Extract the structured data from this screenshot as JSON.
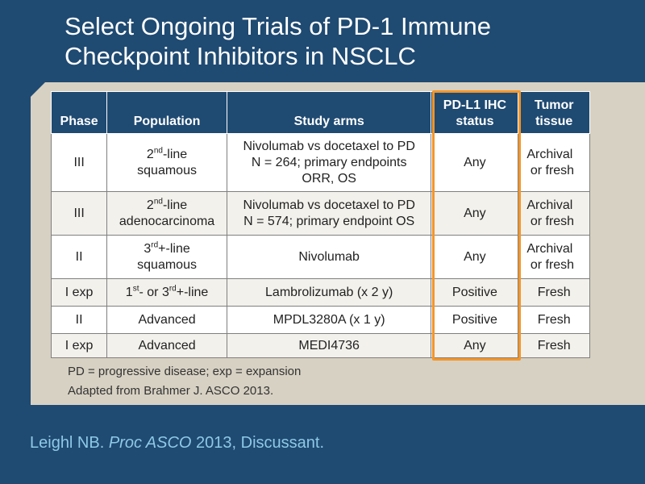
{
  "title": {
    "line1": "Select Ongoing Trials of PD-1 Immune",
    "line2": "Checkpoint Inhibitors in NSCLC"
  },
  "table": {
    "headers": {
      "phase": "Phase",
      "population": "Population",
      "study_arms": "Study arms",
      "pdl1_line1": "PD-L1 IHC",
      "pdl1_line2": "status",
      "tissue_line1": "Tumor",
      "tissue_line2": "tissue"
    },
    "rows": [
      {
        "phase": "III",
        "pop_ord": "2",
        "pop_sup": "nd",
        "pop_rest": "-line",
        "pop_line2": "squamous",
        "arms_line1": "Nivolumab vs docetaxel to PD",
        "arms_line2": "N = 264; primary endpoints",
        "arms_line3": "ORR, OS",
        "pdl1": "Any",
        "tissue_line1": "Archival",
        "tissue_line2": "or fresh"
      },
      {
        "phase": "III",
        "pop_ord": "2",
        "pop_sup": "nd",
        "pop_rest": "-line",
        "pop_line2": "adenocarcinoma",
        "arms_line1": "Nivolumab vs docetaxel to PD",
        "arms_line2": "N = 574; primary endpoint OS",
        "pdl1": "Any",
        "tissue_line1": "Archival",
        "tissue_line2": "or fresh"
      },
      {
        "phase": "II",
        "pop_ord": "3",
        "pop_sup": "rd",
        "pop_rest": "+-line",
        "pop_line2": "squamous",
        "arms_line1": "Nivolumab",
        "pdl1": "Any",
        "tissue_line1": "Archival",
        "tissue_line2": "or fresh"
      },
      {
        "phase": "I exp",
        "pop_a": "1",
        "pop_a_sup": "st",
        "pop_mid": "- or ",
        "pop_b": "3",
        "pop_b_sup": "rd",
        "pop_end": "+-line",
        "arms_line1": "Lambrolizumab (x 2 y)",
        "pdl1": "Positive",
        "tissue": "Fresh"
      },
      {
        "phase": "II",
        "population": "Advanced",
        "arms_line1": "MPDL3280A (x 1 y)",
        "pdl1": "Positive",
        "tissue": "Fresh"
      },
      {
        "phase": "I exp",
        "population": "Advanced",
        "arms_line1": "MEDI4736",
        "pdl1": "Any",
        "tissue": "Fresh"
      }
    ]
  },
  "footnotes": {
    "line1": "PD = progressive disease; exp = expansion",
    "line2": "Adapted from Brahmer J. ASCO 2013."
  },
  "citation": {
    "author": "Leighl NB. ",
    "journal": "Proc ASCO",
    "rest": " 2013, Discussant."
  },
  "colors": {
    "background": "#1f4a72",
    "panel": "#d7d1c3",
    "highlight": "#f4962a",
    "citation_text": "#8ec9e6"
  }
}
